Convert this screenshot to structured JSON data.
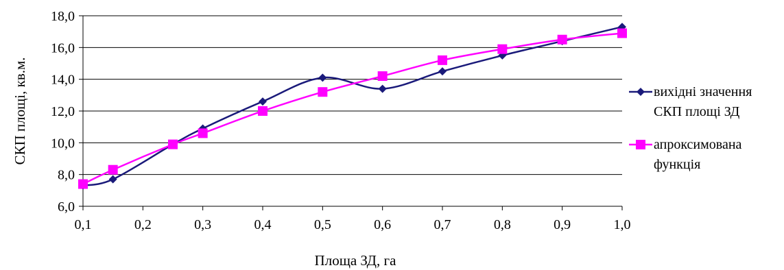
{
  "chart_data": {
    "type": "line",
    "xlabel": "Площа ЗД, га",
    "ylabel": "СКП площі, кв.м.",
    "xlim": [
      0.1,
      1.0
    ],
    "ylim": [
      6.0,
      18.0
    ],
    "x_ticks": [
      "0,1",
      "0,2",
      "0,3",
      "0,4",
      "0,5",
      "0,6",
      "0,7",
      "0,8",
      "0,9",
      "1,0"
    ],
    "y_ticks": [
      "6,0",
      "8,0",
      "10,0",
      "12,0",
      "14,0",
      "16,0",
      "18,0"
    ],
    "grid": "horizontal",
    "legend_position": "right",
    "series": [
      {
        "name": "вихідні значення СКП площі ЗД",
        "legend_lines": [
          "вихідні значення",
          "СКП площі ЗД"
        ],
        "color": "#1a1a7a",
        "marker": "diamond",
        "x": [
          0.1,
          0.15,
          0.25,
          0.3,
          0.4,
          0.5,
          0.6,
          0.7,
          0.8,
          0.9,
          1.0
        ],
        "values": [
          7.3,
          7.7,
          9.9,
          10.9,
          12.6,
          14.1,
          13.4,
          14.5,
          15.5,
          16.4,
          17.3
        ]
      },
      {
        "name": "апроксимована функція",
        "legend_lines": [
          "апроксимована",
          "функція"
        ],
        "color": "#ff00ff",
        "marker": "square",
        "x": [
          0.1,
          0.15,
          0.25,
          0.3,
          0.4,
          0.5,
          0.6,
          0.7,
          0.8,
          0.9,
          1.0
        ],
        "values": [
          7.4,
          8.3,
          9.9,
          10.6,
          12.0,
          13.2,
          14.2,
          15.2,
          15.9,
          16.5,
          16.9
        ]
      }
    ]
  }
}
